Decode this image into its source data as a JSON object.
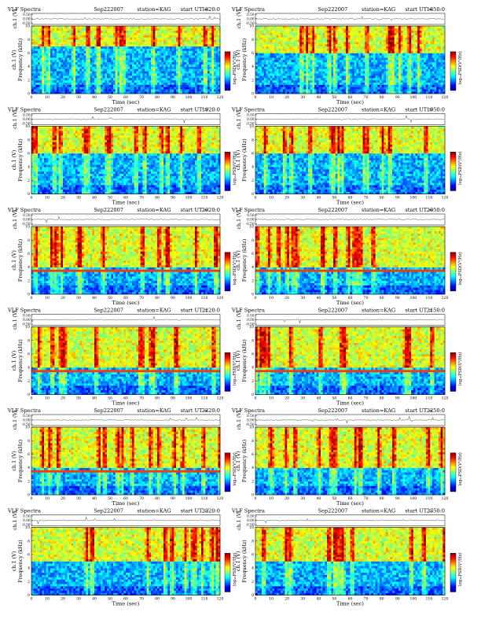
{
  "panel_header": {
    "title": "VLF Spectra",
    "date": "Sep222007",
    "station": "station=KAG",
    "start_prefix": "start  UT ="
  },
  "labels": {
    "channel_axis": "ch.1 (V)",
    "frequency_axis": "Frequency (kHz)",
    "time_axis": "Time (sec)",
    "colorbar": "log₁₀PSD(V²/Hz)"
  },
  "colors": {
    "spectrogram_scale": [
      "#00008f",
      "#0000ff",
      "#0080ff",
      "#00ffff",
      "#80ff80",
      "#ffff00",
      "#ff8000",
      "#ff0000",
      "#800000"
    ]
  },
  "chart_data": [
    {
      "type": "heatmap",
      "start_ut": "1820:0",
      "xlabel": "Time (sec)",
      "ylabel": "Frequency (kHz)",
      "xlim": [
        0,
        120
      ],
      "ylim": [
        0,
        10
      ],
      "x_ticks": [
        0,
        10,
        20,
        30,
        40,
        50,
        60,
        70,
        80,
        90,
        100,
        110,
        120
      ],
      "y_ticks": [
        0,
        2,
        4,
        6,
        8,
        10
      ],
      "waveform": {
        "ylabel": "ch.1 (V)",
        "y_ticks": [
          "0.50",
          "0.00",
          "-0.50"
        ]
      },
      "emission_band_khz": [
        7,
        10
      ]
    },
    {
      "type": "heatmap",
      "start_ut": "1850:0",
      "xlabel": "Time (sec)",
      "ylabel": "Frequency (kHz)",
      "xlim": [
        0,
        120
      ],
      "ylim": [
        0,
        10
      ],
      "x_ticks": [
        0,
        10,
        20,
        30,
        40,
        50,
        60,
        70,
        80,
        90,
        100,
        110,
        120
      ],
      "y_ticks": [
        0,
        2,
        4,
        6,
        8,
        10
      ],
      "waveform": {
        "ylabel": "ch.1 (V)",
        "y_ticks": [
          "0.50",
          "0.00",
          "-0.50"
        ]
      },
      "emission_band_khz": [
        6,
        10
      ]
    },
    {
      "type": "heatmap",
      "start_ut": "1920:0",
      "xlabel": "Time (sec)",
      "ylabel": "Frequency (kHz)",
      "xlim": [
        0,
        120
      ],
      "ylim": [
        0,
        10
      ],
      "x_ticks": [
        0,
        10,
        20,
        30,
        40,
        50,
        60,
        70,
        80,
        90,
        100,
        110,
        120
      ],
      "y_ticks": [
        0,
        2,
        4,
        6,
        8,
        10
      ],
      "waveform": {
        "ylabel": "ch.1 (V)",
        "y_ticks": [
          "0.50",
          "0.00",
          "-0.50"
        ]
      },
      "emission_band_khz": [
        6,
        10
      ]
    },
    {
      "type": "heatmap",
      "start_ut": "1950:0",
      "xlabel": "Time (sec)",
      "ylabel": "Frequency (kHz)",
      "xlim": [
        0,
        120
      ],
      "ylim": [
        0,
        10
      ],
      "x_ticks": [
        0,
        10,
        20,
        30,
        40,
        50,
        60,
        70,
        80,
        90,
        100,
        110,
        120
      ],
      "y_ticks": [
        0,
        2,
        4,
        6,
        8,
        10
      ],
      "waveform": {
        "ylabel": "ch.1 (V)",
        "y_ticks": [
          "0.50",
          "0.00",
          "-0.50"
        ]
      },
      "emission_band_khz": [
        6,
        10
      ]
    },
    {
      "type": "heatmap",
      "start_ut": "2020:0",
      "xlabel": "Time (sec)",
      "ylabel": "Frequency (kHz)",
      "xlim": [
        0,
        120
      ],
      "ylim": [
        0,
        10
      ],
      "x_ticks": [
        0,
        10,
        20,
        30,
        40,
        50,
        60,
        70,
        80,
        90,
        100,
        110,
        120
      ],
      "y_ticks": [
        0,
        2,
        4,
        6,
        8,
        10
      ],
      "waveform": {
        "ylabel": "ch.1 (V)",
        "y_ticks": [
          "0.50",
          "0.00",
          "-0.50"
        ]
      },
      "emission_band_khz": [
        4,
        10
      ],
      "narrowband_khz": 3.6
    },
    {
      "type": "heatmap",
      "start_ut": "2050:0",
      "xlabel": "Time (sec)",
      "ylabel": "Frequency (kHz)",
      "xlim": [
        0,
        120
      ],
      "ylim": [
        0,
        10
      ],
      "x_ticks": [
        0,
        10,
        20,
        30,
        40,
        50,
        60,
        70,
        80,
        90,
        100,
        110,
        120
      ],
      "y_ticks": [
        0,
        2,
        4,
        6,
        8,
        10
      ],
      "waveform": {
        "ylabel": "ch.1 (V)",
        "y_ticks": [
          "0.50",
          "0.00",
          "-0.50"
        ]
      },
      "emission_band_khz": [
        4,
        10
      ],
      "narrowband_khz": 3.6
    },
    {
      "type": "heatmap",
      "start_ut": "2120:0",
      "xlabel": "Time (sec)",
      "ylabel": "Frequency (kHz)",
      "xlim": [
        0,
        120
      ],
      "ylim": [
        0,
        10
      ],
      "x_ticks": [
        0,
        10,
        20,
        30,
        40,
        50,
        60,
        70,
        80,
        90,
        100,
        110,
        120
      ],
      "y_ticks": [
        0,
        2,
        4,
        6,
        8,
        10
      ],
      "waveform": {
        "ylabel": "ch.1 (V)",
        "y_ticks": [
          "0.50",
          "0.00",
          "-0.50"
        ]
      },
      "emission_band_khz": [
        4,
        10
      ],
      "narrowband_khz": 3.6
    },
    {
      "type": "heatmap",
      "start_ut": "2150:0",
      "xlabel": "Time (sec)",
      "ylabel": "Frequency (kHz)",
      "xlim": [
        0,
        120
      ],
      "ylim": [
        0,
        10
      ],
      "x_ticks": [
        0,
        10,
        20,
        30,
        40,
        50,
        60,
        70,
        80,
        90,
        100,
        110,
        120
      ],
      "y_ticks": [
        0,
        2,
        4,
        6,
        8,
        10
      ],
      "waveform": {
        "ylabel": "ch.1 (V)",
        "y_ticks": [
          "0.50",
          "0.00",
          "-0.50"
        ]
      },
      "emission_band_khz": [
        4,
        10
      ],
      "narrowband_khz": 3.6
    },
    {
      "type": "heatmap",
      "start_ut": "2220:0",
      "xlabel": "Time (sec)",
      "ylabel": "Frequency (kHz)",
      "xlim": [
        0,
        120
      ],
      "ylim": [
        0,
        10
      ],
      "x_ticks": [
        0,
        10,
        20,
        30,
        40,
        50,
        60,
        70,
        80,
        90,
        100,
        110,
        120
      ],
      "y_ticks": [
        0,
        2,
        4,
        6,
        8,
        10
      ],
      "waveform": {
        "ylabel": "ch.1 (V)",
        "y_ticks": [
          "0.50",
          "0.00",
          "-0.50"
        ]
      },
      "emission_band_khz": [
        4,
        10
      ],
      "narrowband_khz": 3.6
    },
    {
      "type": "heatmap",
      "start_ut": "2250:0",
      "xlabel": "Time (sec)",
      "ylabel": "Frequency (kHz)",
      "xlim": [
        0,
        120
      ],
      "ylim": [
        0,
        10
      ],
      "x_ticks": [
        0,
        10,
        20,
        30,
        40,
        50,
        60,
        70,
        80,
        90,
        100,
        110,
        120
      ],
      "y_ticks": [
        0,
        2,
        4,
        6,
        8,
        10
      ],
      "waveform": {
        "ylabel": "ch.1 (V)",
        "y_ticks": [
          "0.50",
          "0.00",
          "-0.50"
        ]
      },
      "emission_band_khz": [
        4,
        10
      ]
    },
    {
      "type": "heatmap",
      "start_ut": "2320:0",
      "xlabel": "Time (sec)",
      "ylabel": "Frequency (kHz)",
      "xlim": [
        0,
        120
      ],
      "ylim": [
        0,
        10
      ],
      "x_ticks": [
        0,
        10,
        20,
        30,
        40,
        50,
        60,
        70,
        80,
        90,
        100,
        110,
        120
      ],
      "y_ticks": [
        0,
        2,
        4,
        6,
        8,
        10
      ],
      "waveform": {
        "ylabel": "ch.1 (V)",
        "y_ticks": [
          "0.50",
          "0.00",
          "-0.50"
        ]
      },
      "emission_band_khz": [
        5,
        10
      ]
    },
    {
      "type": "heatmap",
      "start_ut": "2350:0",
      "xlabel": "Time (sec)",
      "ylabel": "Frequency (kHz)",
      "xlim": [
        0,
        120
      ],
      "ylim": [
        0,
        10
      ],
      "x_ticks": [
        0,
        10,
        20,
        30,
        40,
        50,
        60,
        70,
        80,
        90,
        100,
        110,
        120
      ],
      "y_ticks": [
        0,
        2,
        4,
        6,
        8,
        10
      ],
      "waveform": {
        "ylabel": "ch.1 (V)",
        "y_ticks": [
          "0.50",
          "0.00",
          "-0.50"
        ]
      },
      "emission_band_khz": [
        5,
        10
      ]
    }
  ]
}
